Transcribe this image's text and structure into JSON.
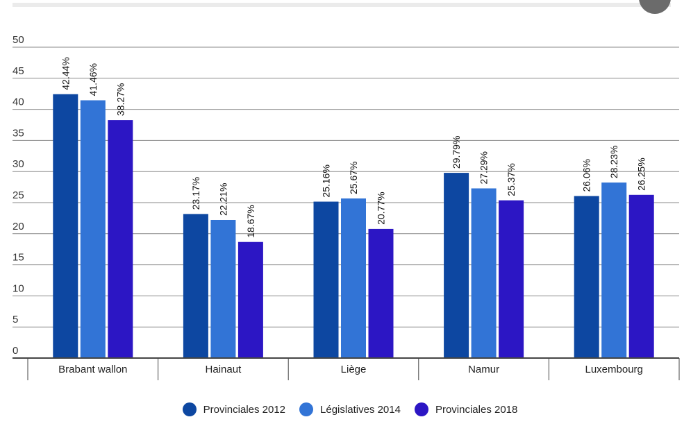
{
  "chart_data": {
    "type": "bar",
    "title": "",
    "xlabel": "",
    "ylabel": "",
    "categories": [
      "Brabant wallon",
      "Hainaut",
      "Liège",
      "Namur",
      "Luxembourg"
    ],
    "series": [
      {
        "name": "Provinciales 2012",
        "color": "#0d47a1",
        "values": [
          42.44,
          23.17,
          25.16,
          29.79,
          26.06
        ],
        "labels": [
          "42.44%",
          "23.17%",
          "25.16%",
          "29.79%",
          "26.06%"
        ]
      },
      {
        "name": "Législatives 2014",
        "color": "#3274d6",
        "values": [
          41.46,
          22.21,
          25.67,
          27.29,
          28.23
        ],
        "labels": [
          "41.46%",
          "22.21%",
          "25.67%",
          "27.29%",
          "28.23%"
        ]
      },
      {
        "name": "Provinciales 2018",
        "color": "#2c16c4",
        "values": [
          38.27,
          18.67,
          20.77,
          25.37,
          26.25
        ],
        "labels": [
          "38.27%",
          "18.67%",
          "20.77%",
          "25.37%",
          "26.25%"
        ]
      }
    ],
    "ylim": [
      0,
      50
    ],
    "yticks": [
      "0",
      "5",
      "10",
      "15",
      "20",
      "25",
      "30",
      "35",
      "40",
      "45",
      "50"
    ],
    "grid": true,
    "legend_position": "bottom"
  }
}
